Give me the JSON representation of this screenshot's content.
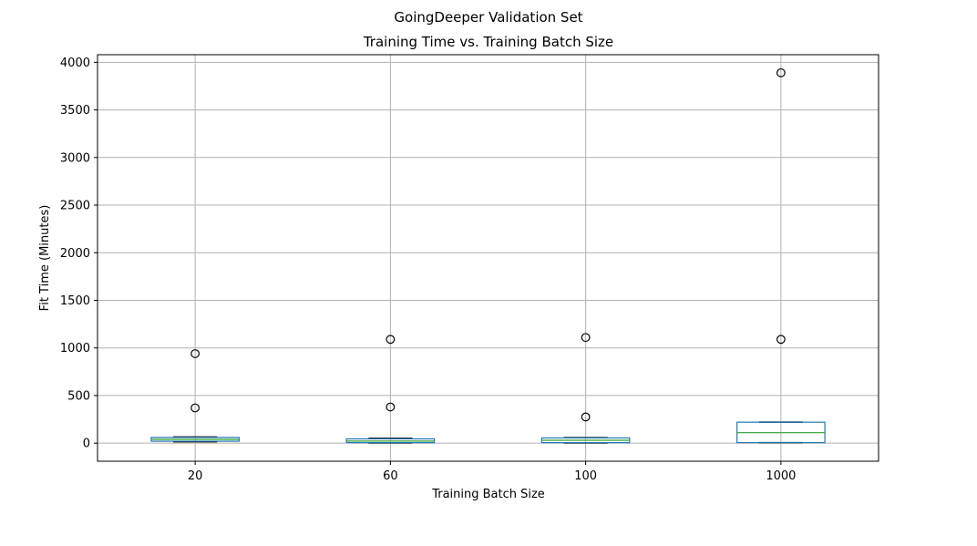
{
  "figure": {
    "suptitle": "GoingDeeper Validation Set"
  },
  "chart_data": {
    "type": "box",
    "title": "Training Time vs. Training Batch Size",
    "xlabel": "Training Batch Size",
    "ylabel": "Fit Time (Minutes)",
    "categories": [
      "20",
      "60",
      "100",
      "1000"
    ],
    "ylim": [
      -190,
      4080
    ],
    "yticks": [
      0,
      500,
      1000,
      1500,
      2000,
      2500,
      3000,
      3500,
      4000
    ],
    "grid": true,
    "legend": "none",
    "boxes": [
      {
        "category": "20",
        "whisker_low": 15,
        "q1": 20,
        "median": 40,
        "q3": 60,
        "whisker_high": 65,
        "outliers": [
          370,
          940
        ]
      },
      {
        "category": "60",
        "whisker_low": 3,
        "q1": 5,
        "median": 22,
        "q3": 45,
        "whisker_high": 50,
        "outliers": [
          380,
          1090
        ]
      },
      {
        "category": "100",
        "whisker_low": 3,
        "q1": 5,
        "median": 30,
        "q3": 55,
        "whisker_high": 58,
        "outliers": [
          275,
          1110
        ]
      },
      {
        "category": "1000",
        "whisker_low": 5,
        "q1": 5,
        "median": 110,
        "q3": 220,
        "whisker_high": 220,
        "outliers": [
          1090,
          3890
        ]
      }
    ],
    "colors": {
      "box": "#1f77b4",
      "median": "#2ca02c",
      "whisker": "#000000",
      "grid": "#b0b0b0",
      "outlier": "#000000"
    }
  }
}
